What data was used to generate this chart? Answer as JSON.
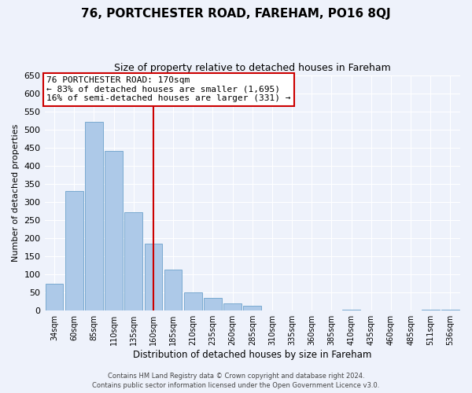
{
  "title1": "76, PORTCHESTER ROAD, FAREHAM, PO16 8QJ",
  "title2": "Size of property relative to detached houses in Fareham",
  "xlabel": "Distribution of detached houses by size in Fareham",
  "ylabel": "Number of detached properties",
  "bar_labels": [
    "34sqm",
    "60sqm",
    "85sqm",
    "110sqm",
    "135sqm",
    "160sqm",
    "185sqm",
    "210sqm",
    "235sqm",
    "260sqm",
    "285sqm",
    "310sqm",
    "335sqm",
    "360sqm",
    "385sqm",
    "410sqm",
    "435sqm",
    "460sqm",
    "485sqm",
    "511sqm",
    "536sqm"
  ],
  "bar_values": [
    73,
    330,
    520,
    440,
    270,
    185,
    113,
    50,
    35,
    19,
    13,
    0,
    0,
    0,
    0,
    1,
    0,
    0,
    0,
    2,
    2
  ],
  "bar_color": "#adc9e8",
  "bar_edge_color": "#7aaad0",
  "ylim": [
    0,
    650
  ],
  "yticks": [
    0,
    50,
    100,
    150,
    200,
    250,
    300,
    350,
    400,
    450,
    500,
    550,
    600,
    650
  ],
  "property_line_index": 5.5,
  "property_line_color": "#cc0000",
  "annotation_title": "76 PORTCHESTER ROAD: 170sqm",
  "annotation_line1": "← 83% of detached houses are smaller (1,695)",
  "annotation_line2": "16% of semi-detached houses are larger (331) →",
  "annotation_box_facecolor": "#ffffff",
  "annotation_box_edgecolor": "#cc0000",
  "footer1": "Contains HM Land Registry data © Crown copyright and database right 2024.",
  "footer2": "Contains public sector information licensed under the Open Government Licence v3.0.",
  "background_color": "#eef2fb",
  "plot_background": "#eef2fb",
  "grid_color": "#ffffff",
  "title1_fontsize": 11,
  "title2_fontsize": 9,
  "ylabel_fontsize": 8,
  "xlabel_fontsize": 8.5,
  "ytick_fontsize": 8,
  "xtick_fontsize": 7,
  "footer_fontsize": 6,
  "annot_fontsize": 8
}
